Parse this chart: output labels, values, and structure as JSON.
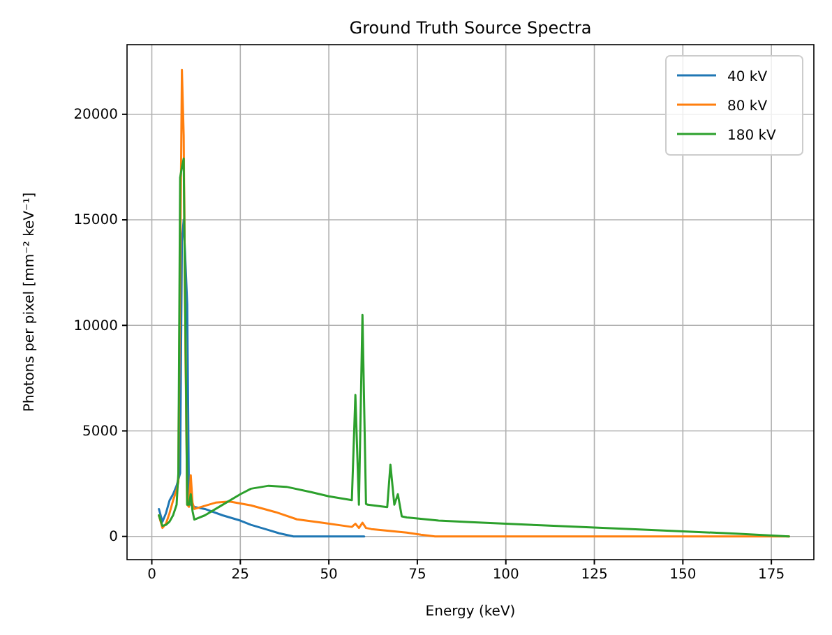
{
  "chart_data": {
    "type": "line",
    "title": "Ground Truth Source Spectra",
    "xlabel": "Energy (keV)",
    "ylabel": "Photons per pixel [mm⁻² keV⁻¹]",
    "xlim": [
      -7,
      187
    ],
    "ylim": [
      -1100,
      23300
    ],
    "xticks": [
      0,
      25,
      50,
      75,
      100,
      125,
      150,
      175
    ],
    "yticks": [
      0,
      5000,
      10000,
      15000,
      20000
    ],
    "grid": true,
    "legend": "top right",
    "series": [
      {
        "name": "40 kV",
        "color": "#1f77b4",
        "x": [
          2,
          3,
          4,
          5,
          6,
          7,
          8,
          8.5,
          9,
          10,
          10.5,
          11,
          12,
          15,
          20,
          25,
          28,
          32,
          36,
          40,
          45,
          60
        ],
        "values": [
          1300,
          700,
          1100,
          1700,
          2000,
          2400,
          3000,
          14000,
          15000,
          11000,
          1600,
          1500,
          1400,
          1300,
          1000,
          750,
          550,
          350,
          150,
          0,
          0,
          0
        ]
      },
      {
        "name": "80 kV",
        "color": "#ff7f0e",
        "x": [
          2,
          3,
          4,
          5,
          6,
          7,
          7.5,
          8.5,
          9,
          9.5,
          10,
          10.5,
          11,
          11.5,
          12,
          15,
          18,
          22,
          28,
          35,
          41,
          48,
          56.5,
          57.5,
          58.5,
          59.5,
          60.5,
          62,
          67,
          72,
          76,
          80,
          90,
          120,
          150,
          180
        ],
        "values": [
          1000,
          400,
          600,
          1100,
          1700,
          2200,
          2600,
          22100,
          19000,
          9000,
          1500,
          1400,
          2900,
          1600,
          1300,
          1450,
          1600,
          1650,
          1470,
          1150,
          810,
          650,
          450,
          600,
          400,
          650,
          400,
          350,
          260,
          180,
          80,
          0,
          0,
          0,
          0,
          0
        ]
      },
      {
        "name": "180 kV",
        "color": "#2ca02c",
        "x": [
          2,
          3,
          4,
          5,
          6,
          7,
          7.5,
          8,
          8.5,
          9,
          10,
          10.5,
          11,
          11.5,
          12,
          15,
          20,
          25,
          28,
          33,
          38,
          45,
          50,
          56.5,
          57.5,
          58.5,
          59.5,
          60.5,
          61,
          66.5,
          67.4,
          68.5,
          69.5,
          70.6,
          72,
          81,
          90,
          100,
          110,
          125,
          140,
          150,
          165,
          180
        ],
        "values": [
          1000,
          500,
          550,
          700,
          1000,
          1500,
          3000,
          17000,
          17500,
          17900,
          1500,
          1500,
          2000,
          1200,
          800,
          1000,
          1500,
          2000,
          2260,
          2400,
          2350,
          2100,
          1900,
          1720,
          6700,
          1500,
          10500,
          1540,
          1500,
          1390,
          3400,
          1500,
          2000,
          950,
          900,
          750,
          680,
          600,
          530,
          420,
          310,
          240,
          130,
          0
        ]
      }
    ]
  }
}
